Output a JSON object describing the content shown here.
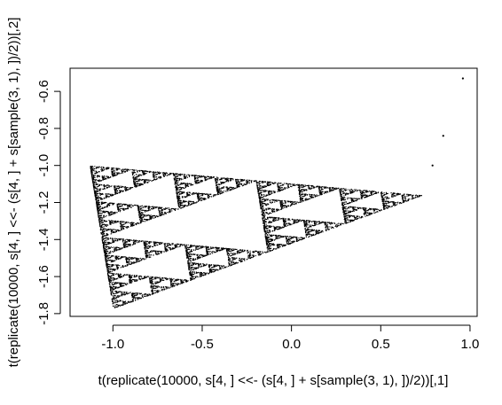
{
  "chart_data": {
    "type": "scatter",
    "title": "",
    "xlabel": "t(replicate(10000, s[4, ] <<- (s[4, ] + s[sample(3, 1), ])/2))[,1]",
    "ylabel": "t(replicate(10000, s[4, ] <<- (s[4, ] + s[sample(3, 1), ])/2))[,2]",
    "xlim": [
      -1.24,
      1.04
    ],
    "ylim": [
      -1.815,
      -0.475
    ],
    "x_ticks": [
      -1.0,
      -0.5,
      0.0,
      0.5,
      1.0
    ],
    "x_tick_labels": [
      "-1.0",
      "-0.5",
      "0.0",
      "0.5",
      "1.0"
    ],
    "y_ticks": [
      -1.8,
      -1.6,
      -1.4,
      -1.2,
      -1.0,
      -0.8,
      -0.6
    ],
    "y_tick_labels": [
      "-1.8",
      "-1.6",
      "-1.4",
      "-1.2",
      "-1.0",
      "-0.8",
      "-0.6"
    ],
    "grid": false,
    "point_color": "#000000",
    "triangle_vertices": [
      {
        "x": -1.13,
        "y": -1.0
      },
      {
        "x": 0.73,
        "y": -1.16
      },
      {
        "x": -1.0,
        "y": -1.77
      }
    ],
    "n_points": 10000,
    "transient_points": [
      {
        "x": 0.96,
        "y": -0.53
      },
      {
        "x": 0.85,
        "y": -0.84
      },
      {
        "x": 0.79,
        "y": -1.0
      }
    ]
  }
}
